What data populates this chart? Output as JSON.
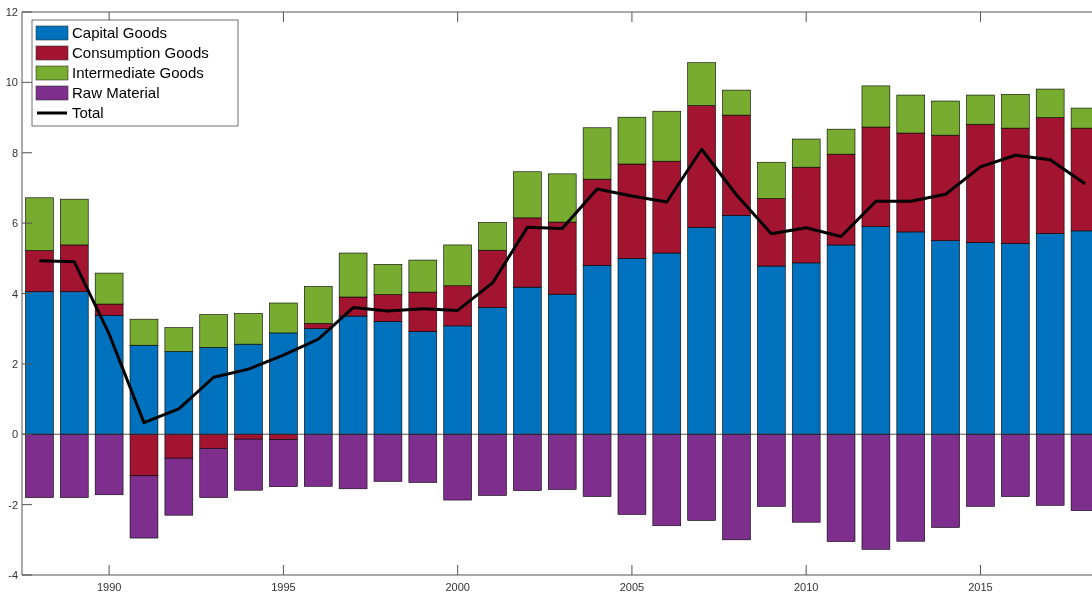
{
  "chart_data": {
    "type": "bar",
    "stacked": true,
    "x": [
      1988,
      1989,
      1990,
      1991,
      1992,
      1993,
      1994,
      1995,
      1996,
      1997,
      1998,
      1999,
      2000,
      2001,
      2002,
      2003,
      2004,
      2005,
      2006,
      2007,
      2008,
      2009,
      2010,
      2011,
      2012,
      2013,
      2014,
      2015,
      2016,
      2017,
      2018
    ],
    "xlim": [
      1987.5,
      2018.2
    ],
    "xticks": [
      1990,
      1995,
      2000,
      2005,
      2010,
      2015
    ],
    "ylim": [
      -4,
      12
    ],
    "yticks": [
      -4,
      -2,
      0,
      2,
      4,
      6,
      8,
      10,
      12
    ],
    "legend": "top left",
    "grid": false,
    "ref_lines": [
      {
        "axis": "y",
        "value": 0,
        "color": "#333333"
      }
    ],
    "series": [
      {
        "name": "Capital Goods",
        "color": "#0072bd",
        "values": [
          4.05,
          4.05,
          3.38,
          2.53,
          2.35,
          2.47,
          2.56,
          2.88,
          3.0,
          3.36,
          3.2,
          2.92,
          3.08,
          3.6,
          4.18,
          3.98,
          4.8,
          5.0,
          5.15,
          5.88,
          6.22,
          4.78,
          4.87,
          5.38,
          5.9,
          5.75,
          5.5,
          5.45,
          5.42,
          5.7,
          5.78
        ]
      },
      {
        "name": "Consumption Goods",
        "color": "#a2142f",
        "values": [
          1.17,
          1.33,
          0.32,
          -1.18,
          -0.68,
          -0.4,
          -0.14,
          -0.15,
          0.15,
          0.54,
          0.77,
          1.12,
          1.14,
          1.63,
          1.97,
          2.05,
          2.45,
          2.68,
          2.61,
          3.46,
          2.85,
          1.92,
          2.72,
          2.58,
          2.83,
          2.81,
          3.0,
          3.36,
          3.28,
          3.3,
          2.92
        ]
      },
      {
        "name": "Intermediate Goods",
        "color": "#77ac30",
        "values": [
          1.5,
          1.3,
          0.88,
          0.74,
          0.68,
          0.93,
          0.87,
          0.85,
          1.05,
          1.25,
          0.86,
          0.91,
          1.16,
          0.79,
          1.31,
          1.37,
          1.46,
          1.33,
          1.42,
          1.22,
          0.71,
          1.03,
          0.8,
          0.71,
          1.17,
          1.08,
          0.97,
          0.83,
          0.96,
          0.81,
          0.57
        ]
      },
      {
        "name": "Raw Material",
        "color": "#7e2f8e",
        "values": [
          -1.8,
          -1.8,
          -1.72,
          -1.77,
          -1.62,
          -1.4,
          -1.45,
          -1.34,
          -1.48,
          -1.55,
          -1.34,
          -1.37,
          -1.87,
          -1.74,
          -1.6,
          -1.57,
          -1.77,
          -2.28,
          -2.6,
          -2.45,
          -3.0,
          -2.05,
          -2.5,
          -3.05,
          -3.27,
          -3.04,
          -2.65,
          -2.05,
          -1.77,
          -2.02,
          -2.17
        ]
      },
      {
        "name": "Total",
        "type": "line",
        "color": "#000000",
        "values": [
          4.93,
          4.9,
          2.85,
          0.33,
          0.72,
          1.62,
          1.85,
          2.25,
          2.7,
          3.6,
          3.5,
          3.57,
          3.52,
          4.3,
          5.88,
          5.85,
          6.97,
          6.77,
          6.6,
          8.1,
          6.8,
          5.7,
          5.87,
          5.62,
          6.62,
          6.62,
          6.82,
          7.6,
          7.93,
          7.8,
          7.12
        ]
      }
    ]
  }
}
